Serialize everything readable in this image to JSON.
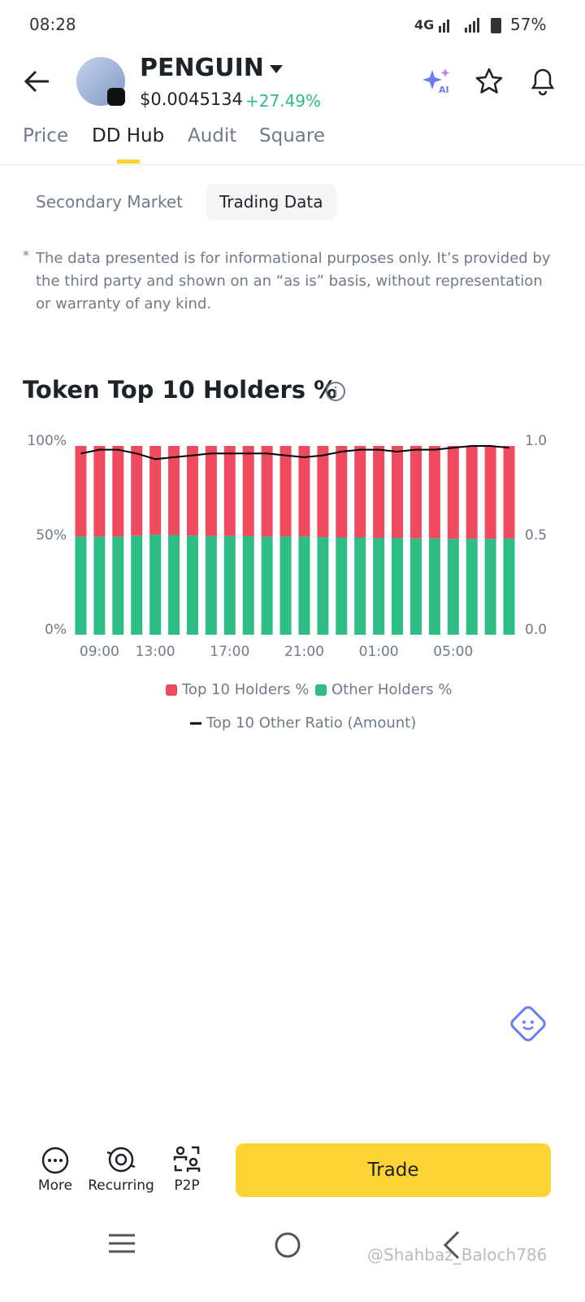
{
  "status_bar": {
    "time": "08:28",
    "network": "4G",
    "battery": "57%"
  },
  "header": {
    "token": "PENGUIN",
    "price": "$0.0045134",
    "change": "+27.49%",
    "ai": "AI"
  },
  "tabs": [
    "Price",
    "DD Hub",
    "Audit",
    "Square"
  ],
  "sub_tabs": [
    "Secondary Market",
    "Trading Data"
  ],
  "disclaimer": {
    "mark": "*",
    "text": "The data presented is for informational purposes only. It’s provided by the third party and shown on an “as is” basis, without representation or warranty of any kind."
  },
  "chart_data": {
    "type": "bar",
    "stacked": true,
    "title": "Token Top 10 Holders %",
    "categories": [
      null,
      "09:00",
      null,
      null,
      "13:00",
      null,
      null,
      null,
      "17:00",
      null,
      null,
      null,
      "21:00",
      null,
      null,
      null,
      "01:00",
      null,
      null,
      null,
      "05:00",
      null,
      null,
      null
    ],
    "series": [
      {
        "name": "Top 10 Holders %",
        "color": "#ef4a5e",
        "values": [
          48,
          48,
          48,
          47.5,
          47,
          47.2,
          47.5,
          47.7,
          47.7,
          47.8,
          48,
          48,
          48,
          48.3,
          48.5,
          48.5,
          48.7,
          48.7,
          49,
          49,
          49.2,
          49.2,
          49.2,
          49
        ]
      },
      {
        "name": "Other Holders %",
        "color": "#2ebd85",
        "values": [
          52,
          52,
          52,
          52.5,
          53,
          52.8,
          52.5,
          52.3,
          52.3,
          52.2,
          52,
          52,
          52,
          51.7,
          51.5,
          51.5,
          51.3,
          51.3,
          51,
          51,
          50.8,
          50.8,
          50.8,
          51
        ]
      },
      {
        "name": "Top 10 Other Ratio (Amount)",
        "color": "#000000",
        "type": "line",
        "axis": "y2",
        "values": [
          0.96,
          0.98,
          0.98,
          0.96,
          0.93,
          0.94,
          0.95,
          0.96,
          0.96,
          0.96,
          0.96,
          0.95,
          0.94,
          0.95,
          0.97,
          0.98,
          0.98,
          0.97,
          0.98,
          0.98,
          0.99,
          1.0,
          1.0,
          0.99
        ]
      }
    ],
    "ylim": [
      0,
      100
    ],
    "yticks": [
      {
        "value": 0,
        "label": "0%"
      },
      {
        "value": 50,
        "label": "50%"
      },
      {
        "value": 100,
        "label": "100%"
      }
    ],
    "y2lim": [
      0,
      1
    ],
    "y2ticks": [
      {
        "value": 0,
        "label": "0.0"
      },
      0.5,
      {
        "value": 1,
        "label": "1.0"
      }
    ]
  },
  "bottom_bar": {
    "more": "More",
    "recurring": "Recurring",
    "p2p": "P2P",
    "trade": "Trade"
  },
  "watermark": "@Shahbaz_Baloch786"
}
